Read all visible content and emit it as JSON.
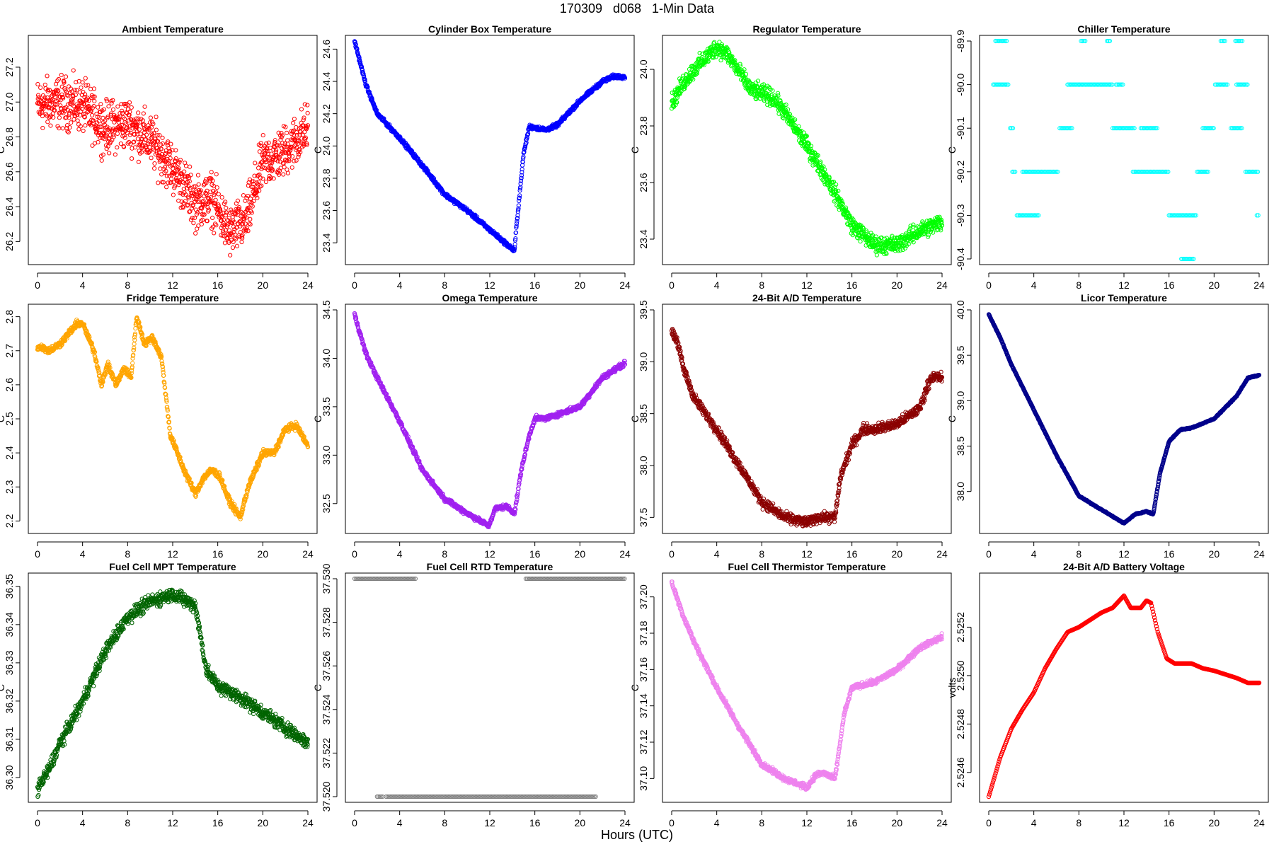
{
  "page_title": "170309   d068   1-Min Data",
  "x_axis_label": "Hours (UTC)",
  "chart_data": [
    {
      "type": "scatter",
      "title": "Ambient Temperature",
      "ylabel": "C",
      "color": "#ff0000",
      "xlim": [
        0,
        24
      ],
      "ylim": [
        26.1,
        27.35
      ],
      "xticks": [
        0,
        4,
        8,
        12,
        16,
        20,
        24
      ],
      "yticks": [
        26.2,
        26.4,
        26.6,
        26.8,
        27.0,
        27.2
      ],
      "ytick_labels": [
        "26.2",
        "26.4",
        "26.6",
        "26.8",
        "27.0",
        "27.2"
      ],
      "x": [
        0,
        2,
        4,
        6,
        8,
        10,
        12,
        14,
        15.5,
        17,
        18.5,
        20,
        22,
        24
      ],
      "y": [
        26.98,
        27.0,
        26.98,
        26.85,
        26.88,
        26.78,
        26.62,
        26.42,
        26.45,
        26.25,
        26.32,
        26.65,
        26.72,
        26.85
      ],
      "noise": 0.12
    },
    {
      "type": "scatter",
      "title": "Cylinder Box Temperature",
      "ylabel": "C",
      "color": "#0000ff",
      "xlim": [
        0,
        24
      ],
      "ylim": [
        23.3,
        24.65
      ],
      "xticks": [
        0,
        4,
        8,
        12,
        16,
        20,
        24
      ],
      "yticks": [
        23.4,
        23.6,
        23.8,
        24.0,
        24.2,
        24.4,
        24.6
      ],
      "ytick_labels": [
        "23.4",
        "23.6",
        "23.8",
        "24.0",
        "24.2",
        "24.4",
        "24.6"
      ],
      "x": [
        0,
        1,
        2,
        4,
        6,
        8,
        10,
        12,
        14.2,
        14.3,
        15,
        15.5,
        17,
        18,
        20,
        22,
        23,
        24
      ],
      "y": [
        24.65,
        24.38,
        24.2,
        24.05,
        23.88,
        23.7,
        23.6,
        23.48,
        23.35,
        23.45,
        23.95,
        24.12,
        24.1,
        24.13,
        24.28,
        24.4,
        24.43,
        24.43
      ],
      "noise": 0.01
    },
    {
      "type": "scatter",
      "title": "Regulator Temperature",
      "ylabel": "C",
      "color": "#00ff00",
      "xlim": [
        0,
        24
      ],
      "ylim": [
        23.33,
        24.1
      ],
      "xticks": [
        0,
        4,
        8,
        12,
        16,
        20,
        24
      ],
      "yticks": [
        23.4,
        23.6,
        23.8,
        24.0
      ],
      "ytick_labels": [
        "23.4",
        "23.6",
        "23.8",
        "24.0"
      ],
      "x": [
        0,
        1,
        2,
        4,
        5,
        7,
        9,
        10,
        12,
        14,
        16,
        18,
        20,
        22,
        24
      ],
      "y": [
        23.88,
        23.95,
        24.0,
        24.08,
        24.05,
        23.93,
        23.9,
        23.85,
        23.73,
        23.6,
        23.45,
        23.38,
        23.38,
        23.43,
        23.46
      ],
      "noise": 0.025
    },
    {
      "type": "scatter",
      "title": "Chiller Temperature",
      "ylabel": "C",
      "color": "#00ffff",
      "xlim": [
        0,
        24
      ],
      "ylim": [
        -90.4,
        -89.9
      ],
      "xticks": [
        0,
        4,
        8,
        12,
        16,
        20,
        24
      ],
      "yticks": [
        -90.4,
        -90.3,
        -90.2,
        -90.1,
        -90.0,
        -89.9
      ],
      "ytick_labels": [
        "-90.4",
        "-90.3",
        "-90.2",
        "-90.1",
        "-90.0",
        "-89.9"
      ],
      "segments": [
        [
          0.4,
          1.8,
          -90.0
        ],
        [
          0.6,
          1.0,
          -89.9
        ],
        [
          1.1,
          1.6,
          -89.9
        ],
        [
          1.9,
          2.2,
          -90.1
        ],
        [
          2.1,
          2.4,
          -90.2
        ],
        [
          2.5,
          4.5,
          -90.3
        ],
        [
          3,
          6.2,
          -90.2
        ],
        [
          6.3,
          7.5,
          -90.1
        ],
        [
          7,
          11,
          -90.0
        ],
        [
          8.2,
          8.6,
          -89.9
        ],
        [
          10.5,
          10.8,
          -89.9
        ],
        [
          11.3,
          12,
          -90.0
        ],
        [
          11,
          13,
          -90.1
        ],
        [
          12.8,
          16,
          -90.2
        ],
        [
          13.5,
          15,
          -90.1
        ],
        [
          16,
          18.5,
          -90.3
        ],
        [
          17.1,
          18.2,
          -90.4
        ],
        [
          18.5,
          19.5,
          -90.2
        ],
        [
          19,
          20,
          -90.1
        ],
        [
          20.1,
          21.3,
          -90.0
        ],
        [
          20.6,
          21,
          -89.9
        ],
        [
          21.9,
          22.6,
          -89.9
        ],
        [
          21.5,
          22.5,
          -90.1
        ],
        [
          22,
          23,
          -90.0
        ],
        [
          22.8,
          24,
          -90.2
        ],
        [
          23.8,
          24,
          -90.3
        ]
      ]
    },
    {
      "type": "scatter",
      "title": "Fridge Temperature",
      "ylabel": "C",
      "color": "#ffa500",
      "xlim": [
        0,
        24
      ],
      "ylim": [
        2.18,
        2.82
      ],
      "xticks": [
        0,
        4,
        8,
        12,
        16,
        20,
        24
      ],
      "yticks": [
        2.2,
        2.3,
        2.4,
        2.5,
        2.6,
        2.7,
        2.8
      ],
      "ytick_labels": [
        "2.2",
        "2.3",
        "2.4",
        "2.5",
        "2.6",
        "2.7",
        "2.8"
      ],
      "x": [
        0,
        0.5,
        1,
        2,
        3,
        3.5,
        4,
        5,
        5.7,
        6.2,
        7,
        7.7,
        8.3,
        8.8,
        9.5,
        10.2,
        11,
        11.8,
        12.3,
        13,
        14,
        14.8,
        15.5,
        16.2,
        17,
        18,
        18.7,
        20,
        21,
        22,
        23,
        24
      ],
      "y": [
        2.71,
        2.71,
        2.7,
        2.72,
        2.76,
        2.78,
        2.78,
        2.7,
        2.6,
        2.66,
        2.6,
        2.65,
        2.62,
        2.8,
        2.72,
        2.74,
        2.68,
        2.45,
        2.41,
        2.35,
        2.28,
        2.33,
        2.35,
        2.33,
        2.26,
        2.21,
        2.3,
        2.4,
        2.4,
        2.47,
        2.48,
        2.42
      ],
      "noise": 0.008
    },
    {
      "type": "scatter",
      "title": "Omega Temperature",
      "ylabel": "C",
      "color": "#a020f0",
      "xlim": [
        0,
        24
      ],
      "ylim": [
        32.25,
        34.5
      ],
      "xticks": [
        0,
        4,
        8,
        12,
        16,
        20,
        24
      ],
      "yticks": [
        32.5,
        33.0,
        33.5,
        34.0,
        34.5
      ],
      "ytick_labels": [
        "32.5",
        "33.0",
        "33.5",
        "34.0",
        "34.5"
      ],
      "x": [
        0,
        1,
        2,
        4,
        6,
        8,
        10,
        11.9,
        12.5,
        13.5,
        14.2,
        14.8,
        15.5,
        16,
        17,
        18,
        20,
        22,
        24
      ],
      "y": [
        34.45,
        34.05,
        33.8,
        33.35,
        32.85,
        32.55,
        32.4,
        32.27,
        32.45,
        32.47,
        32.4,
        32.85,
        33.2,
        33.38,
        33.38,
        33.42,
        33.5,
        33.8,
        33.95
      ],
      "noise": 0.02
    },
    {
      "type": "scatter",
      "title": "24-Bit A/D Temperature",
      "ylabel": "C",
      "color": "#8b0000",
      "xlim": [
        0,
        24
      ],
      "ylim": [
        37.4,
        39.5
      ],
      "xticks": [
        0,
        4,
        8,
        12,
        16,
        20,
        24
      ],
      "yticks": [
        37.5,
        38.0,
        38.5,
        39.0,
        39.5
      ],
      "ytick_labels": [
        "37.5",
        "38.0",
        "38.5",
        "39.0",
        "39.5"
      ],
      "x": [
        0,
        0.5,
        1,
        2,
        3,
        4,
        6,
        8,
        10,
        12,
        13,
        14.5,
        15,
        16,
        17,
        18,
        20,
        22,
        23,
        24
      ],
      "y": [
        39.3,
        39.2,
        38.95,
        38.65,
        38.5,
        38.35,
        38.0,
        37.65,
        37.5,
        37.45,
        37.5,
        37.5,
        37.9,
        38.2,
        38.35,
        38.35,
        38.4,
        38.55,
        38.85,
        38.85
      ],
      "noise": 0.04
    },
    {
      "type": "scatter",
      "title": "Licor Temperature",
      "ylabel": "C",
      "color": "#00008b",
      "xlim": [
        0,
        24
      ],
      "ylim": [
        37.6,
        40.0
      ],
      "xticks": [
        0,
        4,
        8,
        12,
        16,
        20,
        24
      ],
      "yticks": [
        38.0,
        38.5,
        39.0,
        39.5,
        40.0
      ],
      "ytick_labels": [
        "38.0",
        "38.5",
        "39.0",
        "39.5",
        "40.0"
      ],
      "x": [
        0,
        1,
        2,
        4,
        6,
        8,
        10,
        12,
        13,
        14,
        14.6,
        15.2,
        16,
        17,
        18,
        20,
        22,
        23,
        24
      ],
      "y": [
        39.95,
        39.7,
        39.4,
        38.9,
        38.4,
        37.95,
        37.8,
        37.65,
        37.75,
        37.78,
        37.75,
        38.2,
        38.55,
        38.68,
        38.7,
        38.8,
        39.05,
        39.25,
        39.28
      ],
      "noise": 0.005
    },
    {
      "type": "scatter",
      "title": "Fuel Cell MPT Temperature",
      "ylabel": "C",
      "color": "#006400",
      "xlim": [
        0,
        24
      ],
      "ylim": [
        36.295,
        36.352
      ],
      "xticks": [
        0,
        4,
        8,
        12,
        16,
        20,
        24
      ],
      "yticks": [
        36.3,
        36.31,
        36.32,
        36.33,
        36.34,
        36.35
      ],
      "ytick_labels": [
        "36.30",
        "36.31",
        "36.32",
        "36.33",
        "36.34",
        "36.35"
      ],
      "x": [
        0,
        1,
        2,
        4,
        6,
        8,
        10,
        12,
        14,
        15,
        16,
        18,
        20,
        22,
        24
      ],
      "y": [
        36.297,
        36.302,
        36.309,
        36.32,
        36.333,
        36.342,
        36.346,
        36.348,
        36.345,
        36.328,
        36.324,
        36.321,
        36.317,
        36.313,
        36.309
      ],
      "noise": 0.0015
    },
    {
      "type": "scatter",
      "title": "Fuel Cell RTD Temperature",
      "ylabel": "C",
      "color": "#808080",
      "xlim": [
        0,
        24
      ],
      "ylim": [
        37.52,
        37.53
      ],
      "xticks": [
        0,
        4,
        8,
        12,
        16,
        20,
        24
      ],
      "yticks": [
        37.52,
        37.522,
        37.524,
        37.526,
        37.528,
        37.53
      ],
      "ytick_labels": [
        "37.520",
        "37.522",
        "37.524",
        "37.526",
        "37.528",
        "37.530"
      ],
      "segments": [
        [
          0,
          5.5,
          37.53
        ],
        [
          15.2,
          24,
          37.53
        ],
        [
          2.8,
          21.5,
          37.52
        ],
        [
          2,
          2.5,
          37.52
        ]
      ]
    },
    {
      "type": "scatter",
      "title": "Fuel Cell Thermistor Temperature",
      "ylabel": "C",
      "color": "#ee82ee",
      "xlim": [
        0,
        24
      ],
      "ylim": [
        37.09,
        37.21
      ],
      "xticks": [
        0,
        4,
        8,
        12,
        16,
        20,
        24
      ],
      "yticks": [
        37.1,
        37.12,
        37.14,
        37.16,
        37.18,
        37.2
      ],
      "ytick_labels": [
        "37.10",
        "37.12",
        "37.14",
        "37.16",
        "37.18",
        "37.20"
      ],
      "x": [
        0,
        1,
        2,
        4,
        6,
        8,
        10,
        12,
        12.8,
        13.5,
        14.5,
        15.3,
        16,
        18,
        20,
        22,
        24
      ],
      "y": [
        37.208,
        37.19,
        37.175,
        37.15,
        37.128,
        37.108,
        37.1,
        37.095,
        37.102,
        37.103,
        37.1,
        37.135,
        37.15,
        37.153,
        37.16,
        37.172,
        37.178
      ],
      "noise": 0.0012
    },
    {
      "type": "line",
      "title": "24-Bit A/D Battery Voltage",
      "ylabel": "volts",
      "color": "#ff0000",
      "xlim": [
        0,
        24
      ],
      "ylim": [
        2.5245,
        2.5254
      ],
      "xticks": [
        0,
        4,
        8,
        12,
        16,
        20,
        24
      ],
      "yticks": [
        2.5246,
        2.5248,
        2.525,
        2.5252
      ],
      "ytick_labels": [
        "2.5246",
        "2.5248",
        "2.5250",
        "2.5252"
      ],
      "x": [
        0,
        1,
        2,
        3,
        4,
        5,
        6,
        7,
        8,
        9,
        10,
        11,
        12,
        12.6,
        13.5,
        14,
        14.4,
        15,
        15.8,
        16.5,
        18,
        19,
        20,
        22,
        23,
        24
      ],
      "y": [
        2.5245,
        2.52466,
        2.52478,
        2.52486,
        2.52493,
        2.52503,
        2.52511,
        2.52518,
        2.5252,
        2.52523,
        2.52526,
        2.52528,
        2.52533,
        2.52528,
        2.52528,
        2.52531,
        2.5253,
        2.52518,
        2.52507,
        2.52505,
        2.52505,
        2.52503,
        2.52502,
        2.52499,
        2.52497,
        2.52497
      ]
    }
  ]
}
